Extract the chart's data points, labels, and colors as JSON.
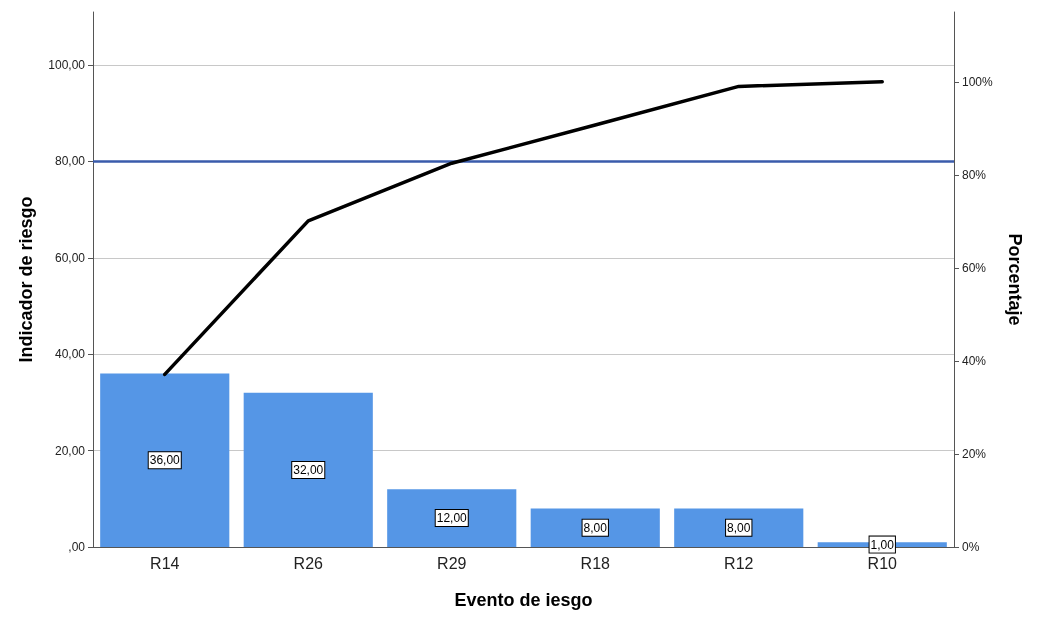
{
  "chart_data": {
    "type": "bar",
    "xlabel": "Evento de iesgo",
    "ylabel": "Indicador de riesgo",
    "y2label": "Porcentaje",
    "categories": [
      "R14",
      "R26",
      "R29",
      "R18",
      "R12",
      "R10"
    ],
    "series": [
      {
        "color": "#5596e6",
        "values": [
          36,
          32,
          12,
          8,
          8,
          1
        ],
        "value_labels": [
          "36,00",
          "32,00",
          "12,00",
          "8,00",
          "8,00",
          "1,00"
        ]
      },
      {
        "type": "line",
        "axis": "y2",
        "color": "#000000",
        "values": [
          37.1,
          70.1,
          82.5,
          90.7,
          99,
          100
        ]
      }
    ],
    "ylim": [
      0,
      111
    ],
    "yticks": [
      {
        "value": 0,
        "label": ",00"
      },
      {
        "value": 20,
        "label": "20,00"
      },
      {
        "value": 40,
        "label": "40,00"
      },
      {
        "value": 60,
        "label": "60,00"
      },
      {
        "value": 80,
        "label": "80,00"
      },
      {
        "value": 100,
        "label": "100,00"
      }
    ],
    "y2lim": [
      0,
      115
    ],
    "y2ticks": [
      {
        "value": 0,
        "label": "0%"
      },
      {
        "value": 20,
        "label": "20%"
      },
      {
        "value": 40,
        "label": "40%"
      },
      {
        "value": 60,
        "label": "60%"
      },
      {
        "value": 80,
        "label": "80%"
      },
      {
        "value": 100,
        "label": "100%"
      }
    ],
    "ref_lines": [
      {
        "axis": "y",
        "value": 80,
        "color": "#3a5bab"
      }
    ],
    "grid": "y",
    "marker": "none",
    "line_style": "solid"
  }
}
